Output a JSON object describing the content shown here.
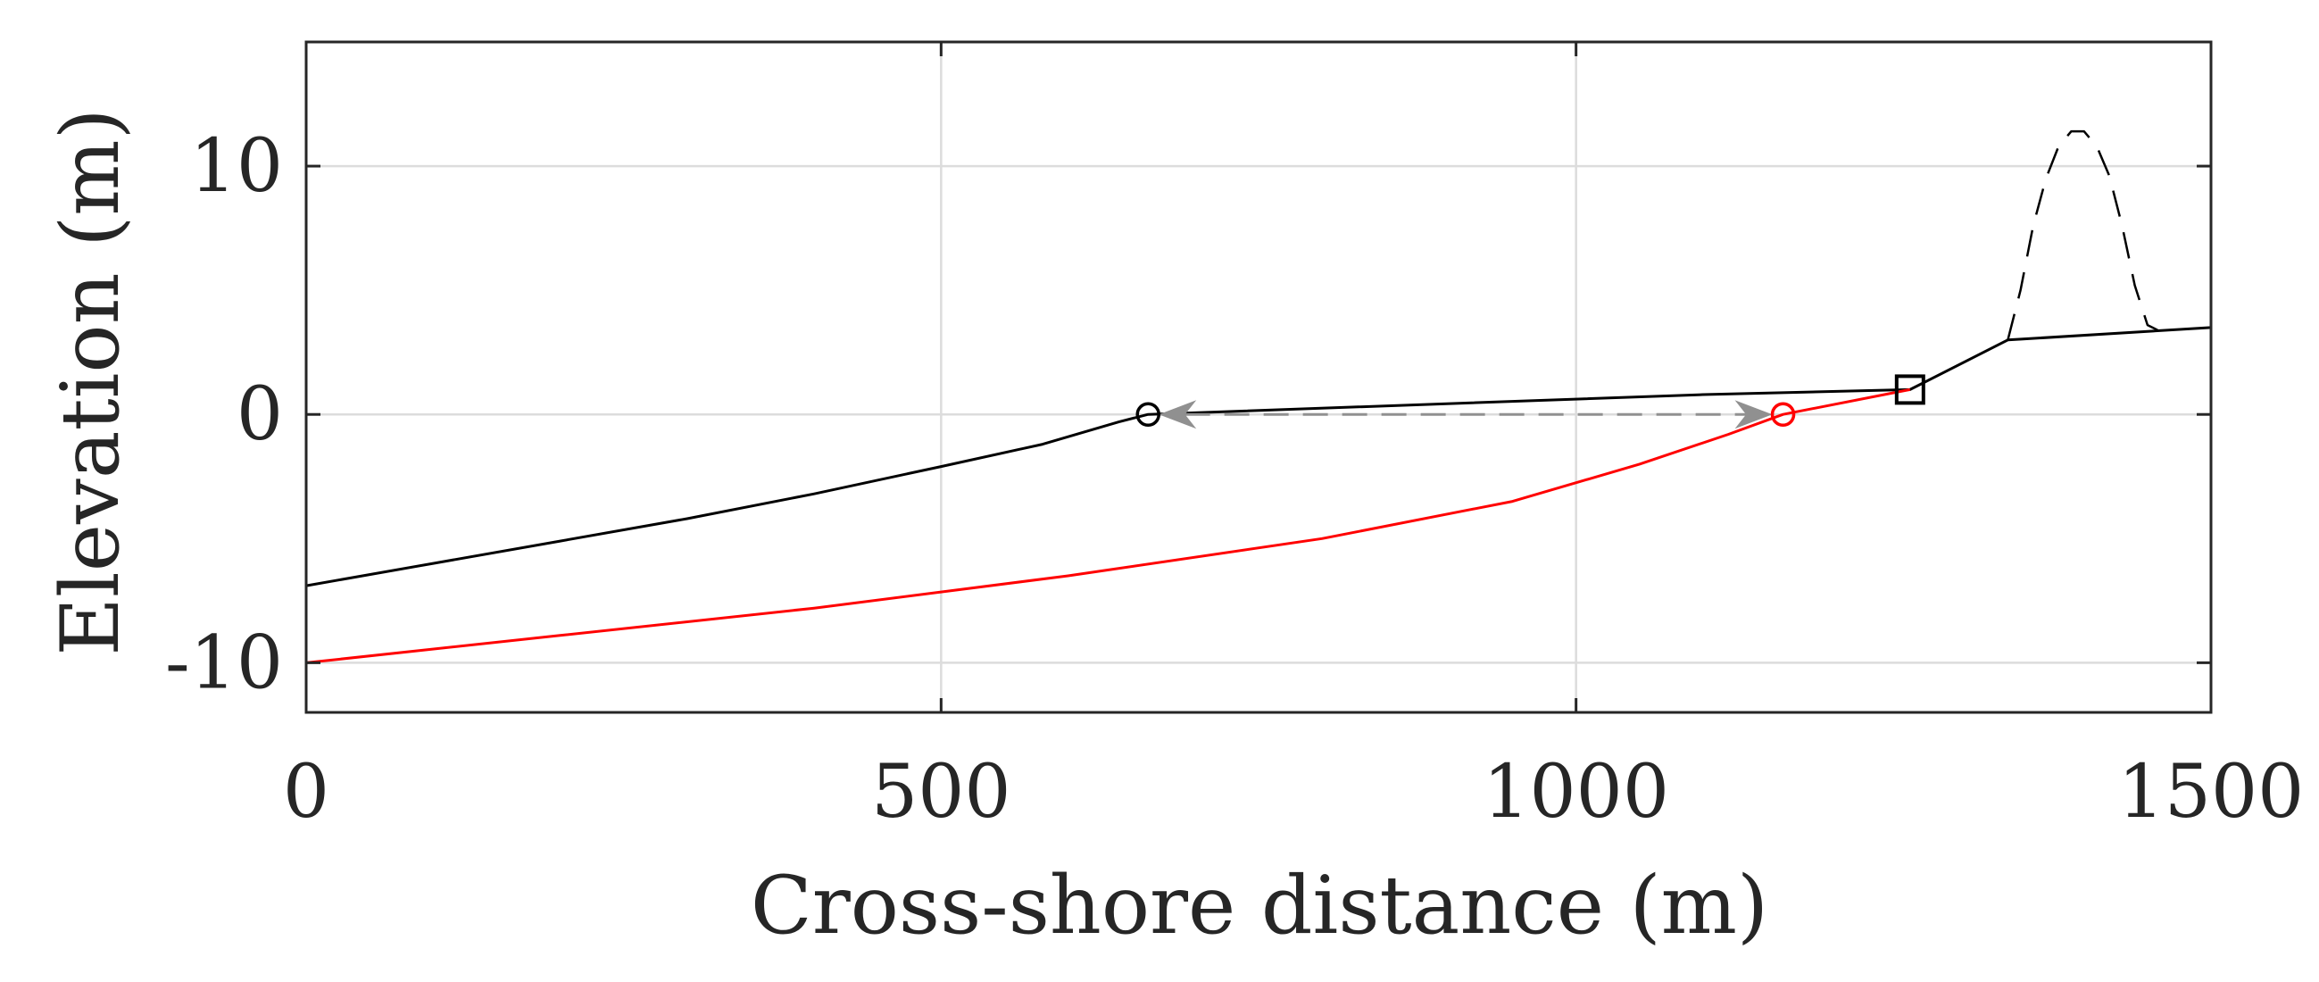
{
  "chart_data": {
    "type": "line",
    "xlabel": "Cross-shore distance (m)",
    "ylabel": "Elevation (m)",
    "xlim": [
      0,
      1500
    ],
    "ylim": [
      -12,
      15
    ],
    "xticks": [
      0,
      500,
      1000,
      1500
    ],
    "xtick_labels": [
      "0",
      "500",
      "1000",
      "1500"
    ],
    "yticks": [
      -10,
      0,
      10
    ],
    "ytick_labels": [
      "-10",
      "0",
      "10"
    ],
    "grid": true,
    "series": [
      {
        "id": "initial-profile",
        "color": "#000000",
        "style": "solid",
        "x": [
          0,
          100,
          200,
          300,
          400,
          500,
          580,
          640,
          663,
          1100,
          1263,
          1340,
          1500
        ],
        "y": [
          -6.9,
          -6.0,
          -5.1,
          -4.2,
          -3.2,
          -2.1,
          -1.2,
          -0.3,
          0.0,
          0.8,
          1.0,
          3.0,
          3.5
        ]
      },
      {
        "id": "shifted-profile",
        "color": "#ff0000",
        "style": "solid",
        "x": [
          0,
          200,
          400,
          600,
          800,
          950,
          1050,
          1120,
          1163,
          1263
        ],
        "y": [
          -10.0,
          -8.9,
          -7.8,
          -6.5,
          -5.0,
          -3.5,
          -2.0,
          -0.8,
          0.0,
          1.0
        ]
      },
      {
        "id": "dune",
        "color": "#000000",
        "style": "dashed",
        "x": [
          1340,
          1350,
          1360,
          1370,
          1380,
          1390,
          1400,
          1410,
          1420,
          1430,
          1440,
          1450,
          1458
        ],
        "y": [
          3.0,
          5.0,
          7.6,
          9.5,
          10.8,
          11.4,
          11.4,
          10.8,
          9.6,
          7.6,
          5.2,
          3.6,
          3.4
        ]
      }
    ],
    "markers": [
      {
        "id": "shoreline-initial",
        "shape": "circle",
        "color": "#000000",
        "x": 663,
        "y": 0
      },
      {
        "id": "shoreline-shifted",
        "shape": "circle",
        "color": "#ff0000",
        "x": 1163,
        "y": 0
      },
      {
        "id": "reference-point",
        "shape": "square",
        "color": "#000000",
        "x": 1263,
        "y": 1.0
      }
    ],
    "annotations": [
      {
        "id": "shoreline-shift-arrow",
        "type": "double-arrow",
        "style": "dashed",
        "color": "#909090",
        "x1": 663,
        "y1": 0,
        "x2": 1163,
        "y2": 0
      }
    ]
  }
}
